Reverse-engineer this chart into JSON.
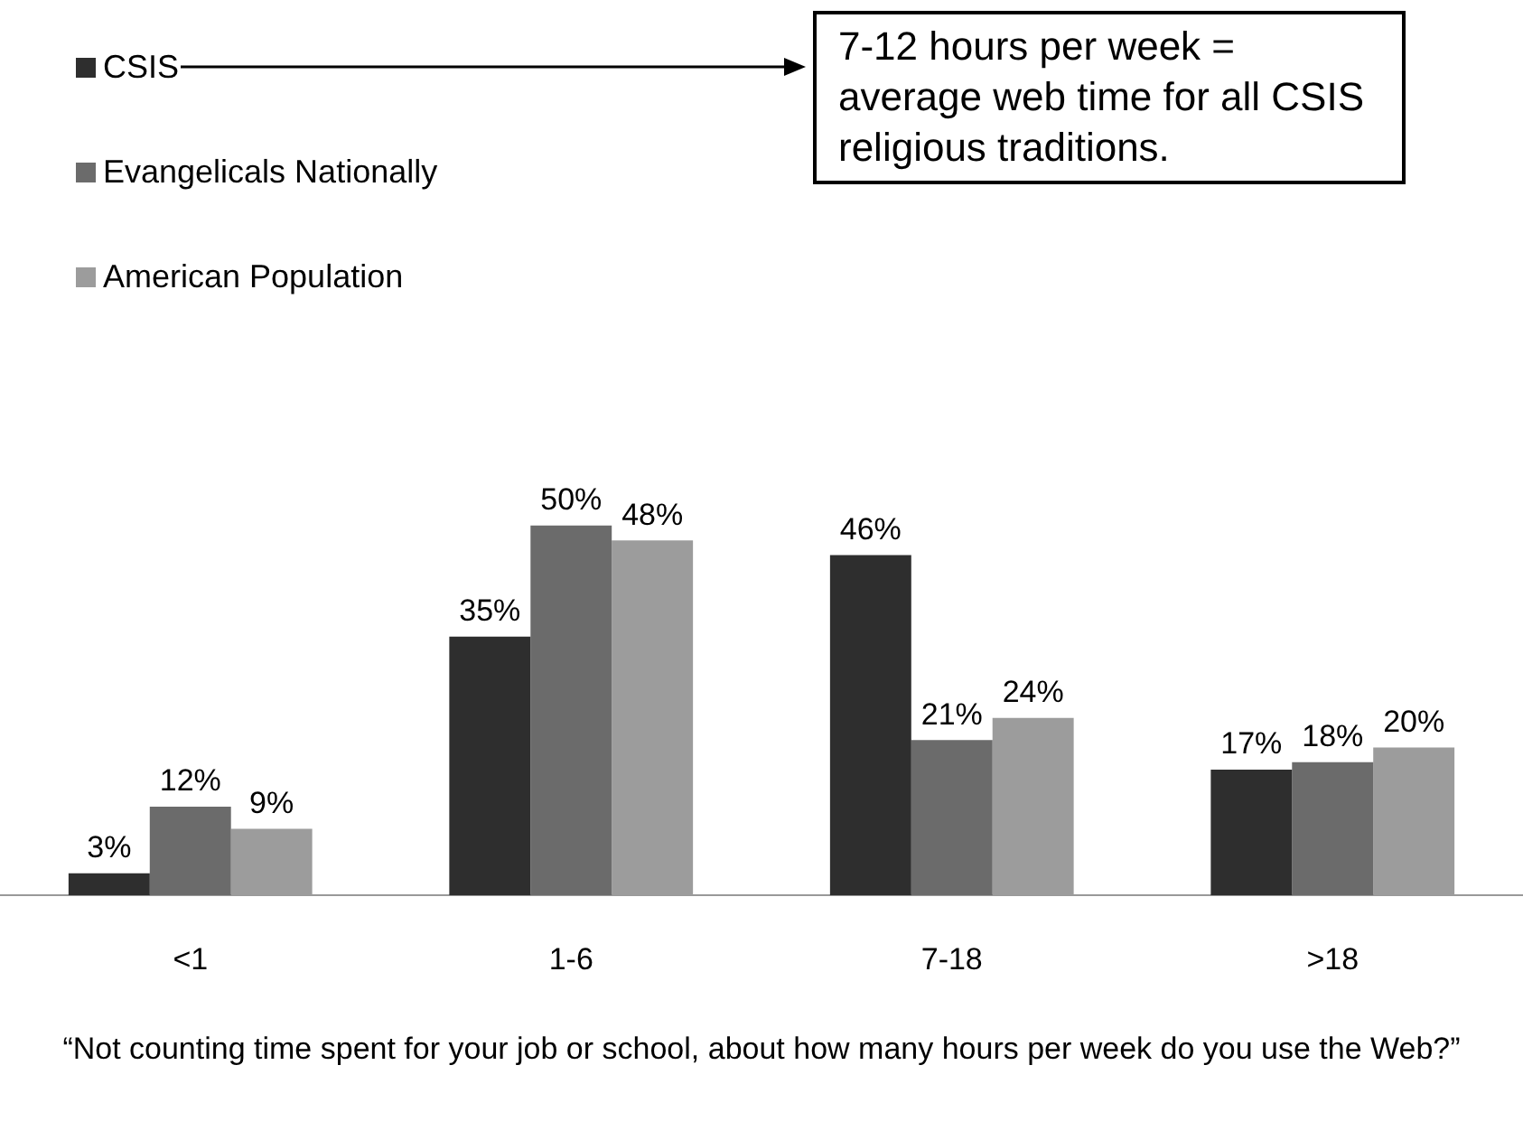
{
  "chart_data": {
    "type": "bar",
    "xlabel": "“Not counting time spent for your job or school, about how many hours per week do you use the Web?”",
    "categories": [
      "<1",
      "1-6",
      "7-18",
      ">18"
    ],
    "series": [
      {
        "name": "CSIS",
        "color": "#2e2e2e",
        "values": [
          3,
          35,
          46,
          17
        ],
        "value_labels": [
          "3%",
          "35%",
          "46%",
          "17%"
        ]
      },
      {
        "name": "Evangelicals Nationally",
        "color": "#6b6b6b",
        "values": [
          12,
          50,
          21,
          18
        ],
        "value_labels": [
          "12%",
          "50%",
          "21%",
          "18%"
        ]
      },
      {
        "name": "American Population",
        "color": "#9c9c9c",
        "values": [
          9,
          48,
          24,
          20
        ],
        "value_labels": [
          "9%",
          "48%",
          "24%",
          "20%"
        ]
      }
    ],
    "legend": "top left",
    "annotations": [
      "7-12 hours per week = average web time for all CSIS religious traditions."
    ]
  }
}
